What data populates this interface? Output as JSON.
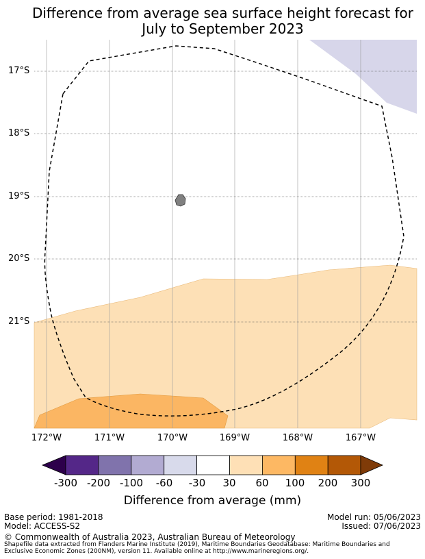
{
  "title_line1": "Difference from average sea surface height forecast for",
  "title_line2": "July to September 2023",
  "map": {
    "lat_labels": [
      "17°S",
      "18°S",
      "19°S",
      "20°S",
      "21°S"
    ],
    "lon_labels": [
      "172°W",
      "171°W",
      "170°W",
      "169°W",
      "168°W",
      "167°W"
    ],
    "colors": {
      "light_purple": "#d7d6ea",
      "light_orange": "#fde0b6",
      "mid_orange": "#fbb663",
      "island": "#808080"
    }
  },
  "colorbar": {
    "ticks": [
      "-300",
      "-200",
      "-100",
      "-60",
      "-30",
      "30",
      "60",
      "100",
      "200",
      "300"
    ],
    "title": "Difference from average (mm)",
    "colors": [
      "#2d004b",
      "#542788",
      "#8073ac",
      "#b2abd2",
      "#d8daeb",
      "#ffffff",
      "#fee0b6",
      "#fdb863",
      "#e08214",
      "#b35806",
      "#7f3b08"
    ]
  },
  "footer": {
    "base_period": "Base period: 1981-2018",
    "model": "Model: ACCESS-S2",
    "model_run": "Model run: 05/06/2023",
    "issued": "Issued: 07/06/2023",
    "copyright": "© Commonwealth of Australia 2023, Australian Bureau of Meteorology",
    "shapefile_line1": "Shapefile data extracted from Flanders Marine Institute (2019), Maritime Boundaries Geodatabase: Maritime Boundaries and",
    "shapefile_line2": "Exclusive Economic Zones (200NM), version 11. Available online at http://www.marineregions.org/."
  }
}
